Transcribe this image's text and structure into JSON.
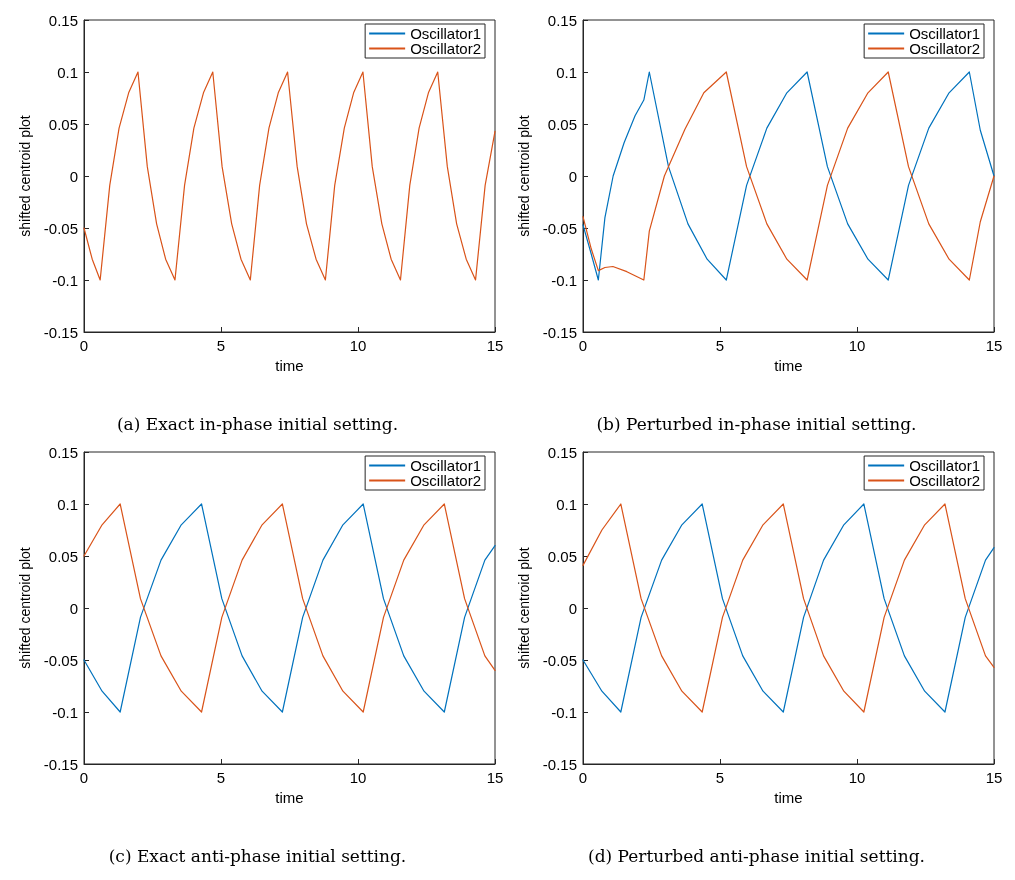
{
  "chart_data": [
    {
      "type": "line",
      "xlabel": "time",
      "ylabel": "shifted centroid plot",
      "annotations": [
        "(a) Exact in-phase initial setting."
      ],
      "xlim": [
        0,
        15
      ],
      "xticks": [
        0,
        5,
        10,
        15
      ],
      "ylim": [
        -0.15,
        0.15
      ],
      "yticks": [
        -0.15,
        -0.1,
        -0.05,
        0,
        0.05,
        0.1,
        0.15
      ],
      "grid": false,
      "legend": "top right",
      "marker": "none",
      "line_style": "solid",
      "series": [
        {
          "name": "Oscillator1",
          "color": "#0072bd"
        },
        {
          "name": "Oscillator2",
          "color": "#d95319",
          "x": [
            0,
            0.3,
            0.59,
            0.94,
            1.28,
            1.63,
            1.97,
            2.31,
            2.65,
            2.98,
            3.32,
            3.67,
            4.01,
            4.36,
            4.7,
            5.04,
            5.39,
            5.73,
            6.07,
            6.41,
            6.75,
            7.09,
            7.43,
            7.78,
            8.12,
            8.47,
            8.81,
            9.15,
            9.5,
            9.84,
            10.18,
            10.52,
            10.87,
            11.21,
            11.55,
            11.89,
            12.23,
            12.57,
            12.91,
            13.26,
            13.6,
            13.95,
            14.29,
            14.64,
            15
          ],
          "values": [
            -0.05,
            -0.08,
            -0.1,
            -0.009,
            0.046,
            0.08,
            0.1,
            0.009,
            -0.046,
            -0.08,
            -0.1,
            -0.009,
            0.046,
            0.08,
            0.1,
            0.009,
            -0.046,
            -0.08,
            -0.1,
            -0.009,
            0.046,
            0.08,
            0.1,
            0.009,
            -0.046,
            -0.08,
            -0.1,
            -0.009,
            0.046,
            0.08,
            0.1,
            0.009,
            -0.046,
            -0.08,
            -0.1,
            -0.009,
            0.046,
            0.08,
            0.1,
            0.009,
            -0.046,
            -0.08,
            -0.1,
            -0.009,
            0.043
          ]
        }
      ]
    },
    {
      "type": "line",
      "xlabel": "time",
      "ylabel": "shifted centroid plot",
      "annotations": [
        "(b) Perturbed in-phase initial setting."
      ],
      "xlim": [
        0,
        15
      ],
      "xticks": [
        0,
        5,
        10,
        15
      ],
      "ylim": [
        -0.15,
        0.15
      ],
      "yticks": [
        -0.15,
        -0.1,
        -0.05,
        0,
        0.05,
        0.1,
        0.15
      ],
      "grid": false,
      "legend": "top right",
      "marker": "none",
      "line_style": "solid",
      "series": [
        {
          "name": "Oscillator1",
          "color": "#0072bd",
          "x": [
            0,
            0.3,
            0.56,
            0.8,
            1.1,
            1.5,
            1.9,
            2.22,
            2.42,
            3.12,
            3.83,
            4.53,
            5.23,
            5.97,
            6.71,
            7.44,
            8.18,
            8.92,
            9.66,
            10.4,
            11.14,
            11.88,
            12.62,
            13.36,
            14.1,
            14.5,
            15
          ],
          "values": [
            -0.047,
            -0.075,
            -0.1,
            -0.04,
            0,
            0.032,
            0.058,
            0.073,
            0.1,
            0.009,
            -0.046,
            -0.08,
            -0.1,
            -0.009,
            0.046,
            0.08,
            0.1,
            0.009,
            -0.046,
            -0.08,
            -0.1,
            -0.009,
            0.046,
            0.08,
            0.1,
            0.044,
            0
          ]
        },
        {
          "name": "Oscillator2",
          "color": "#d95319",
          "x": [
            0,
            0.3,
            0.56,
            0.8,
            1.09,
            1.6,
            2.22,
            2.42,
            2.97,
            3.72,
            4.41,
            5.23,
            5.97,
            6.71,
            7.44,
            8.18,
            8.92,
            9.66,
            10.4,
            11.14,
            11.88,
            12.62,
            13.36,
            14.1,
            14.5,
            15
          ],
          "values": [
            -0.039,
            -0.07,
            -0.091,
            -0.088,
            -0.087,
            -0.092,
            -0.1,
            -0.053,
            0,
            0.045,
            0.08,
            0.1,
            0.009,
            -0.046,
            -0.08,
            -0.1,
            -0.009,
            0.046,
            0.08,
            0.1,
            0.009,
            -0.046,
            -0.08,
            -0.1,
            -0.044,
            0
          ]
        }
      ]
    },
    {
      "type": "line",
      "xlabel": "time",
      "ylabel": "shifted centroid plot",
      "annotations": [
        "(c) Exact anti-phase initial setting."
      ],
      "xlim": [
        0,
        15
      ],
      "xticks": [
        0,
        5,
        10,
        15
      ],
      "ylim": [
        -0.15,
        0.15
      ],
      "yticks": [
        -0.15,
        -0.1,
        -0.05,
        0,
        0.05,
        0.1,
        0.15
      ],
      "grid": false,
      "legend": "top right",
      "marker": "none",
      "line_style": "solid",
      "series": [
        {
          "name": "Oscillator1",
          "color": "#0072bd",
          "x": [
            0,
            0.66,
            1.32,
            2.06,
            2.81,
            3.55,
            4.29,
            5.03,
            5.77,
            6.5,
            7.24,
            7.98,
            8.72,
            9.45,
            10.19,
            10.93,
            11.67,
            12.41,
            13.15,
            13.89,
            14.63,
            15
          ],
          "values": [
            -0.05,
            -0.08,
            -0.1,
            -0.009,
            0.046,
            0.08,
            0.1,
            0.009,
            -0.046,
            -0.08,
            -0.1,
            -0.009,
            0.046,
            0.08,
            0.1,
            0.009,
            -0.046,
            -0.08,
            -0.1,
            -0.009,
            0.046,
            0.06
          ]
        },
        {
          "name": "Oscillator2",
          "color": "#d95319",
          "x": [
            0,
            0.66,
            1.32,
            2.06,
            2.81,
            3.55,
            4.29,
            5.03,
            5.77,
            6.5,
            7.24,
            7.98,
            8.72,
            9.45,
            10.19,
            10.93,
            11.67,
            12.41,
            13.15,
            13.89,
            14.63,
            15
          ],
          "values": [
            0.05,
            0.08,
            0.1,
            0.009,
            -0.046,
            -0.08,
            -0.1,
            -0.009,
            0.046,
            0.08,
            0.1,
            0.009,
            -0.046,
            -0.08,
            -0.1,
            -0.009,
            0.046,
            0.08,
            0.1,
            0.009,
            -0.046,
            -0.06
          ]
        }
      ]
    },
    {
      "type": "line",
      "xlabel": "time",
      "ylabel": "shifted centroid plot",
      "annotations": [
        "(d) Perturbed anti-phase initial setting."
      ],
      "xlim": [
        0,
        15
      ],
      "xticks": [
        0,
        5,
        10,
        15
      ],
      "ylim": [
        -0.15,
        0.15
      ],
      "yticks": [
        -0.15,
        -0.1,
        -0.05,
        0,
        0.05,
        0.1,
        0.15
      ],
      "grid": false,
      "legend": "top right",
      "marker": "none",
      "line_style": "solid",
      "series": [
        {
          "name": "Oscillator1",
          "color": "#0072bd",
          "x": [
            0,
            0.69,
            1.38,
            2.12,
            2.87,
            3.61,
            4.35,
            5.09,
            5.83,
            6.57,
            7.31,
            8.05,
            8.78,
            9.52,
            10.25,
            10.99,
            11.73,
            12.47,
            13.21,
            13.95,
            14.69,
            15
          ],
          "values": [
            -0.05,
            -0.08,
            -0.1,
            -0.009,
            0.046,
            0.08,
            0.1,
            0.009,
            -0.046,
            -0.08,
            -0.1,
            -0.009,
            0.046,
            0.08,
            0.1,
            0.009,
            -0.046,
            -0.08,
            -0.1,
            -0.009,
            0.046,
            0.058
          ]
        },
        {
          "name": "Oscillator2",
          "color": "#d95319",
          "x": [
            0,
            0.69,
            1.38,
            2.12,
            2.87,
            3.61,
            4.35,
            5.09,
            5.83,
            6.57,
            7.31,
            8.05,
            8.78,
            9.52,
            10.25,
            10.99,
            11.73,
            12.47,
            13.21,
            13.95,
            14.69,
            15
          ],
          "values": [
            0.041,
            0.075,
            0.1,
            0.009,
            -0.046,
            -0.08,
            -0.1,
            -0.009,
            0.046,
            0.08,
            0.1,
            0.009,
            -0.046,
            -0.08,
            -0.1,
            -0.009,
            0.046,
            0.08,
            0.1,
            0.009,
            -0.046,
            -0.057
          ]
        }
      ]
    }
  ]
}
